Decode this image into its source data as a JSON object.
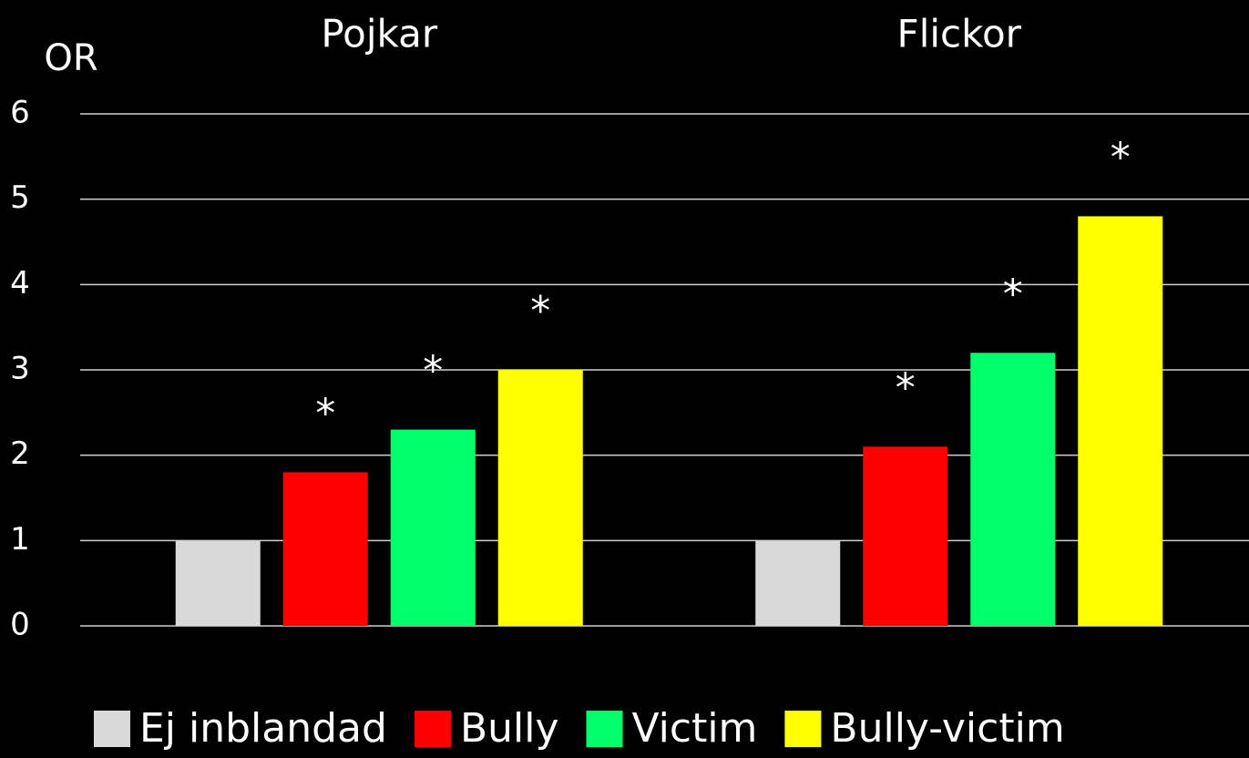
{
  "chart_data": {
    "type": "bar",
    "y_label": "OR",
    "categories": [
      "Pojkar",
      "Flickor"
    ],
    "series": [
      {
        "name": "Ej inblandad",
        "color": "#d9d9d9",
        "values": [
          1,
          1
        ]
      },
      {
        "name": "Bully",
        "color": "#ff0000",
        "values": [
          1.8,
          2.1
        ],
        "markers": [
          "*",
          "*"
        ]
      },
      {
        "name": "Victim",
        "color": "#00ff6a",
        "values": [
          2.3,
          3.2
        ],
        "markers": [
          "*",
          "*"
        ]
      },
      {
        "name": "Bully-victim",
        "color": "#ffff00",
        "values": [
          3.0,
          4.8
        ],
        "markers": [
          "*",
          "*"
        ]
      }
    ],
    "ylim": [
      0,
      6
    ],
    "yticks": [
      0,
      1,
      2,
      3,
      4,
      5,
      6
    ],
    "grid": true,
    "legend": "bottom"
  }
}
